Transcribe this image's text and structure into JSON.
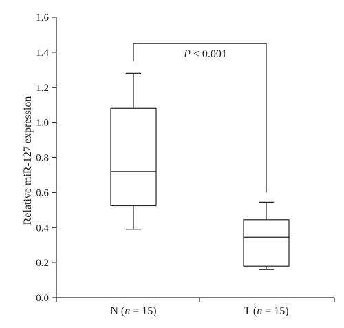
{
  "chart_data": {
    "type": "box",
    "title": "",
    "xlabel": "",
    "ylabel": "Relative miR-127 expression",
    "ylim": [
      0,
      1.6
    ],
    "yticks": [
      "0.0",
      "0.2",
      "0.4",
      "0.6",
      "0.8",
      "1.0",
      "1.2",
      "1.4",
      "1.6"
    ],
    "categories": [
      "N (n = 15)",
      "T (n = 15)"
    ],
    "category_parts": [
      {
        "letter": "N",
        "open": " (",
        "var": "n",
        "rest": " = 15)"
      },
      {
        "letter": "T",
        "open": " (",
        "var": "n",
        "rest": " = 15)"
      }
    ],
    "boxes": [
      {
        "min": 0.39,
        "q1": 0.525,
        "median": 0.72,
        "q3": 1.08,
        "max": 1.28
      },
      {
        "min": 0.16,
        "q1": 0.18,
        "median": 0.345,
        "q3": 0.445,
        "max": 0.545
      }
    ],
    "significance": {
      "text_italic": "P",
      "text_rest": " < 0.001",
      "bracket_y": 1.45,
      "left_drop_to": 1.35,
      "right_drop_to": 0.6
    },
    "grid": false,
    "legend": "none"
  }
}
